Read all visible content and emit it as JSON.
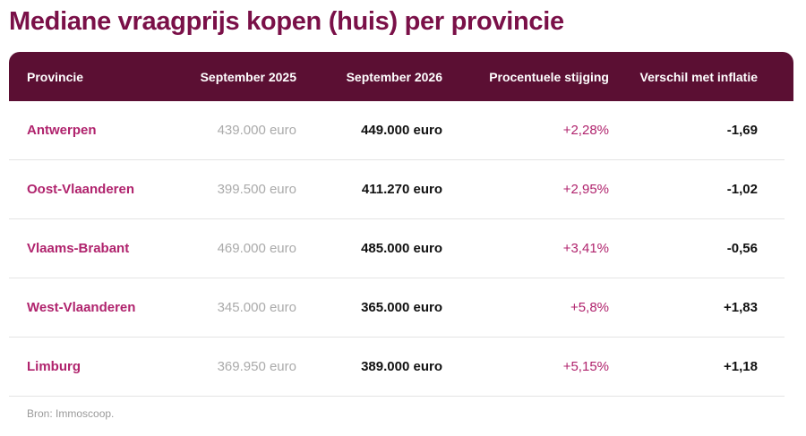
{
  "title": "Mediane vraagprijs kopen (huis) per provincie",
  "table": {
    "headers": [
      "Provincie",
      "September 2025",
      "September 2026",
      "Procentuele stijging",
      "Verschil met inflatie"
    ],
    "rows": [
      [
        "Antwerpen",
        "439.000 euro",
        "449.000 euro",
        "+2,28%",
        "-1,69"
      ],
      [
        "Oost-Vlaanderen",
        "399.500 euro",
        "411.270 euro",
        "+2,95%",
        "-1,02"
      ],
      [
        "Vlaams-Brabant",
        "469.000 euro",
        "485.000 euro",
        "+3,41%",
        "-0,56"
      ],
      [
        "West-Vlaanderen",
        "345.000 euro",
        "365.000 euro",
        "+5,8%",
        "+1,83"
      ],
      [
        "Limburg",
        "369.950 euro",
        "389.000 euro",
        "+5,15%",
        "+1,18"
      ]
    ]
  },
  "source": "Bron: Immoscoop.",
  "colors": {
    "title": "#7a1048",
    "header_bg": "#5b0f33",
    "accent": "#b0236d"
  }
}
